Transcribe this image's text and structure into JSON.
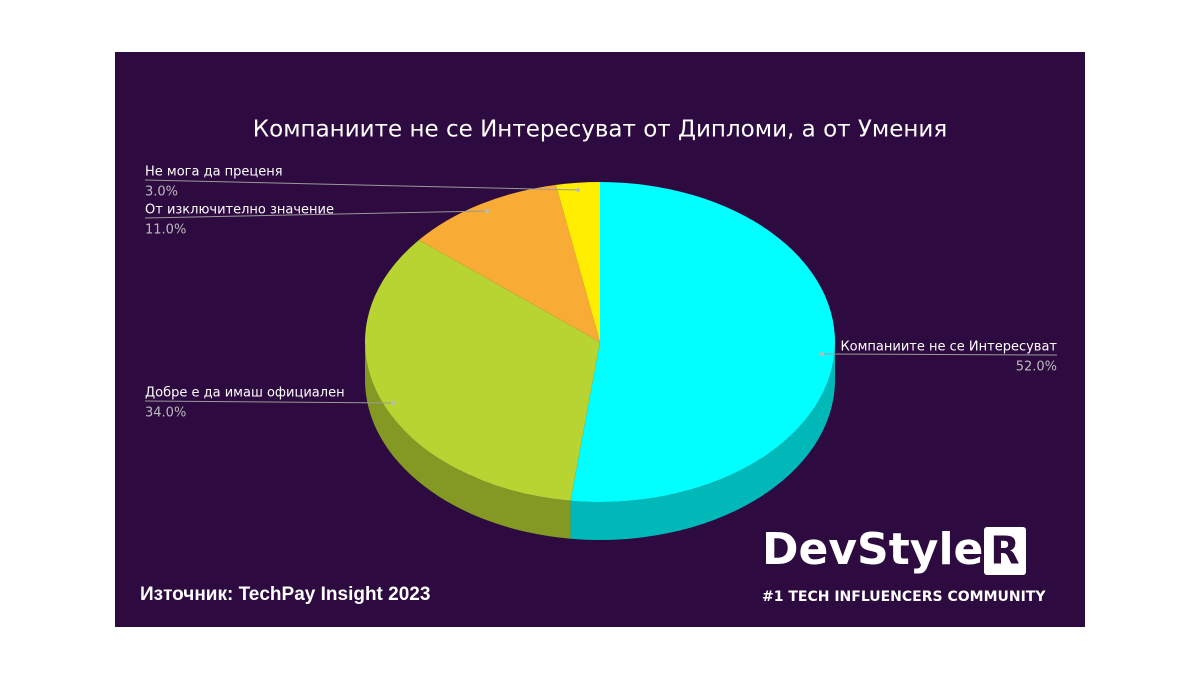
{
  "chart_data": {
    "type": "pie",
    "title": "Компаниите не се Интересуват от Дипломи, а от Умения",
    "categories": [
      "Компаниите не се Интересуват",
      "Добре е да имаш официален",
      "От изключително значение",
      "Не мога да преценя"
    ],
    "values": [
      52,
      34,
      11,
      3
    ],
    "value_labels": [
      "52.0%",
      "34.0%",
      "11.0%",
      "3.0%"
    ],
    "colors": [
      "#00ffff",
      "#b8d432",
      "#f9ac35",
      "#ffee00"
    ],
    "source": "Източник: TechPay Insight 2023",
    "logo": {
      "text": "DevStyle",
      "mark": "R",
      "tagline": "#1 TECH INFLUENCERS COMMUNITY"
    }
  }
}
